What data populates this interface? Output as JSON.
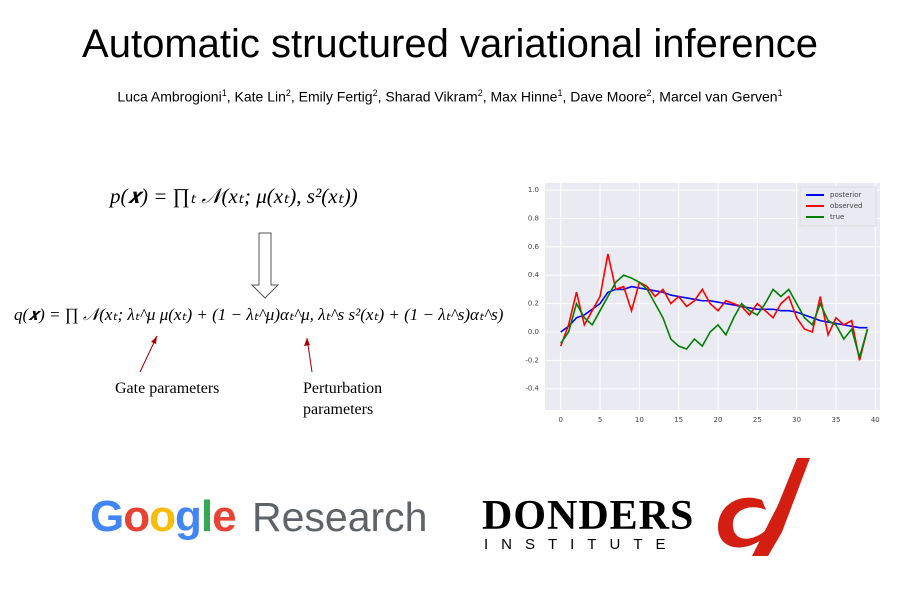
{
  "title": "Automatic structured variational inference",
  "authors": [
    {
      "name": "Luca Ambrogioni",
      "affiliation": "1"
    },
    {
      "name": "Kate Lin",
      "affiliation": "2"
    },
    {
      "name": "Emily Fertig",
      "affiliation": "2"
    },
    {
      "name": "Sharad Vikram",
      "affiliation": "2"
    },
    {
      "name": "Max Hinne",
      "affiliation": "1"
    },
    {
      "name": "Dave Moore",
      "affiliation": "2"
    },
    {
      "name": "Marcel van Gerven",
      "affiliation": "1"
    }
  ],
  "equations": [
    "p(𝒙) = ∏ₜ 𝒩(xₜ; μ(xₜ), s²(xₜ))",
    "q(𝒙) = ∏ 𝒩(xₜ; λₜ^μ μ(xₜ) + (1 − λₜ^μ)αₜ^μ, λₜ^s s²(xₜ) + (1 − λₜ^s)αₜ^s)"
  ],
  "annotations": [
    "Gate parameters",
    "Perturbation parameters"
  ],
  "logos": {
    "google": "Google",
    "research": "Research",
    "donders": "DONDERS",
    "institute": "INSTITUTE"
  },
  "chart_data": {
    "type": "line",
    "x": [
      0,
      1,
      2,
      3,
      4,
      5,
      6,
      7,
      8,
      9,
      10,
      11,
      12,
      13,
      14,
      15,
      16,
      17,
      18,
      19,
      20,
      21,
      22,
      23,
      24,
      25,
      26,
      27,
      28,
      29,
      30,
      31,
      32,
      33,
      34,
      35,
      36,
      37,
      38,
      39
    ],
    "series": [
      {
        "name": "posterior",
        "color": "#0000ff",
        "values": [
          0.0,
          0.04,
          0.1,
          0.12,
          0.16,
          0.2,
          0.28,
          0.3,
          0.3,
          0.32,
          0.31,
          0.3,
          0.29,
          0.28,
          0.26,
          0.25,
          0.24,
          0.23,
          0.22,
          0.22,
          0.21,
          0.2,
          0.19,
          0.18,
          0.17,
          0.16,
          0.16,
          0.16,
          0.15,
          0.15,
          0.14,
          0.12,
          0.1,
          0.08,
          0.07,
          0.06,
          0.05,
          0.04,
          0.03,
          0.03
        ]
      },
      {
        "name": "observed",
        "color": "#ff0000",
        "values": [
          -0.1,
          0.05,
          0.28,
          0.05,
          0.15,
          0.25,
          0.55,
          0.3,
          0.32,
          0.15,
          0.35,
          0.32,
          0.25,
          0.3,
          0.2,
          0.25,
          0.18,
          0.22,
          0.3,
          0.2,
          0.15,
          0.22,
          0.2,
          0.18,
          0.12,
          0.2,
          0.15,
          0.1,
          0.2,
          0.25,
          0.1,
          0.02,
          0.0,
          0.25,
          -0.02,
          0.1,
          0.05,
          0.08,
          -0.2,
          0.02
        ]
      },
      {
        "name": "true",
        "color": "#008000",
        "values": [
          -0.08,
          0.0,
          0.2,
          0.1,
          0.05,
          0.15,
          0.25,
          0.35,
          0.4,
          0.38,
          0.35,
          0.3,
          0.2,
          0.1,
          -0.05,
          -0.1,
          -0.12,
          -0.05,
          -0.1,
          0.0,
          0.05,
          -0.02,
          0.1,
          0.2,
          0.15,
          0.12,
          0.2,
          0.3,
          0.25,
          0.3,
          0.2,
          0.1,
          0.05,
          0.2,
          0.08,
          0.05,
          -0.05,
          0.02,
          -0.18,
          0.02
        ]
      }
    ],
    "xlim": [
      -2,
      40.6
    ],
    "xticks": [
      0,
      5,
      10,
      15,
      20,
      25,
      30,
      35,
      40
    ],
    "ylim": [
      -0.55,
      1.05
    ],
    "yticks": [
      -0.4,
      -0.2,
      {
        "value": 0,
        "label": "0.0"
      },
      0.2,
      0.4,
      0.6,
      0.8,
      {
        "value": 1,
        "label": "1.0"
      }
    ],
    "grid": true,
    "legend": "upper right",
    "background": "#eaeaf2"
  }
}
